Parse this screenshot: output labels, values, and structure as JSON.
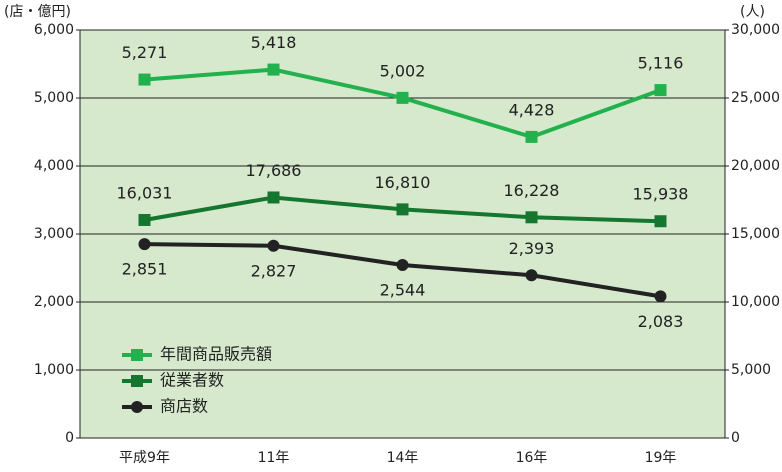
{
  "chart_data": {
    "type": "line",
    "y_label": "(店・億円)",
    "y2_label": "(人)",
    "categories": [
      "平成9年",
      "11年",
      "14年",
      "16年",
      "19年"
    ],
    "series": [
      {
        "name": "年間商品販売額",
        "color": "#23b14d",
        "marker": "square",
        "values": [
          5271,
          5418,
          5002,
          4428,
          5116
        ],
        "value_labels": [
          "5,271",
          "5,418",
          "5,002",
          "4,428",
          "5,116"
        ]
      },
      {
        "name": "従業者数",
        "color": "#15772f",
        "marker": "square",
        "axis": "y2",
        "values": [
          16031,
          17686,
          16810,
          16228,
          15938
        ],
        "value_labels": [
          "16,031",
          "17,686",
          "16,810",
          "16,228",
          "15,938"
        ]
      },
      {
        "name": "商店数",
        "color": "#222222",
        "marker": "circle",
        "values": [
          2851,
          2827,
          2544,
          2393,
          2083
        ],
        "value_labels": [
          "2,851",
          "2,827",
          "2,544",
          "2,393",
          "2,083"
        ]
      }
    ],
    "ylim": [
      0,
      6000
    ],
    "yticks": [
      0,
      {
        "value": 1000,
        "label": "1,000"
      },
      {
        "value": 2000,
        "label": "2,000"
      },
      {
        "value": 3000,
        "label": "3,000"
      },
      {
        "value": 4000,
        "label": "4,000"
      },
      {
        "value": 5000,
        "label": "5,000"
      },
      {
        "value": 6000,
        "label": "6,000"
      }
    ],
    "y2lim": [
      0,
      30000
    ],
    "y2ticks": [
      0,
      {
        "value": 5000,
        "label": "5,000"
      },
      {
        "value": 10000,
        "label": "10,000"
      },
      {
        "value": 15000,
        "label": "15,000"
      },
      {
        "value": 20000,
        "label": "20,000"
      },
      {
        "value": 25000,
        "label": "25,000"
      },
      {
        "value": 30000,
        "label": "30,000"
      }
    ],
    "grid": true,
    "legend": "lower left"
  }
}
